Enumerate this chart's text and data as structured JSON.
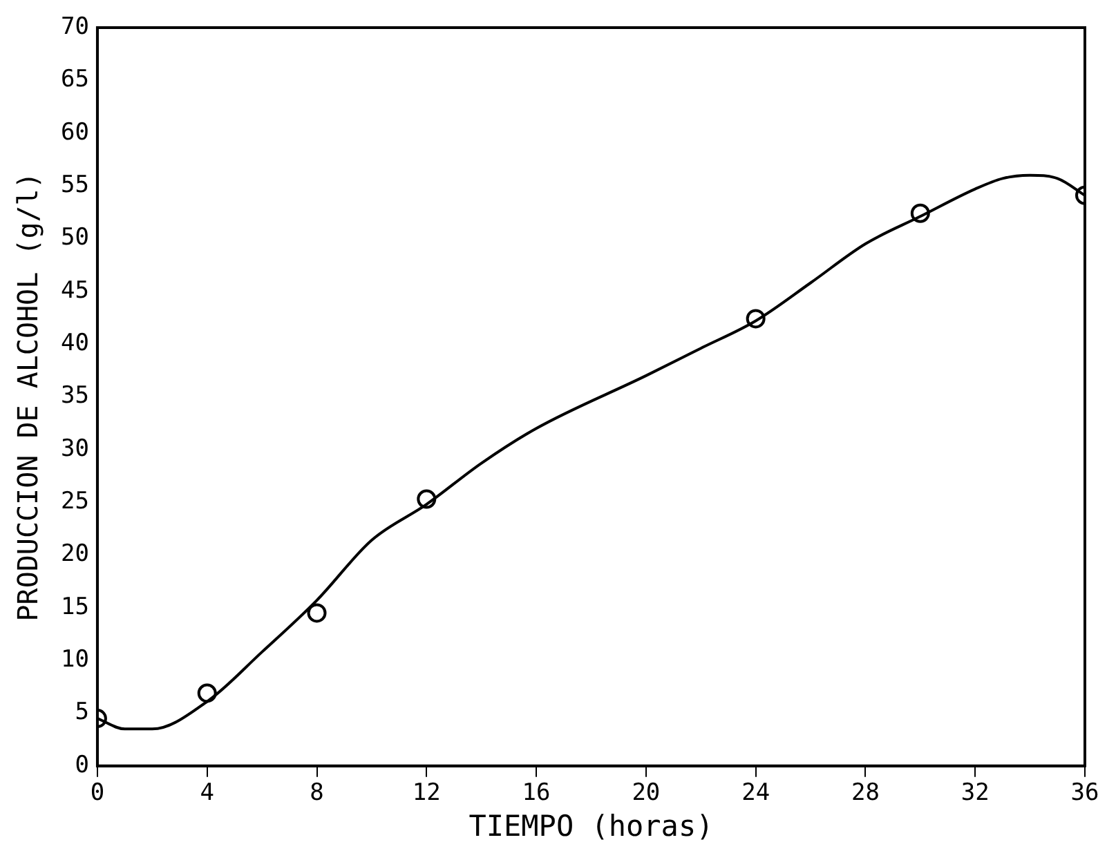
{
  "chart_data": {
    "type": "scatter",
    "xlabel": "TIEMPO (horas)",
    "ylabel": "PRODUCCION DE ALCOHOL (g/l)",
    "xlim": [
      0,
      36
    ],
    "xticks": [
      0,
      4,
      8,
      12,
      16,
      20,
      24,
      28,
      32,
      36
    ],
    "ylim": [
      0,
      70
    ],
    "yticks": [
      0,
      5,
      10,
      15,
      20,
      25,
      30,
      35,
      40,
      45,
      50,
      55,
      60,
      65,
      70
    ],
    "grid": false,
    "legend": false,
    "marker": "circle",
    "series": [
      {
        "color": "#000000",
        "x": [
          0,
          4,
          8,
          12,
          24,
          30,
          36
        ],
        "values": [
          4.5,
          6.9,
          14.5,
          25.3,
          42.4,
          52.4,
          54.1
        ]
      },
      {
        "type": "line",
        "color": "#000000",
        "marker": "none",
        "x": [
          0,
          1,
          2,
          4,
          6,
          8,
          10,
          12,
          14,
          16,
          20,
          22,
          24,
          26,
          28,
          30,
          32,
          33,
          34,
          35,
          36
        ],
        "values": [
          4.5,
          3.5,
          3.5,
          6.1,
          10.8,
          15.7,
          21.4,
          24.8,
          28.7,
          32.0,
          37.0,
          39.6,
          42.2,
          45.8,
          49.5,
          52.1,
          54.7,
          55.7,
          56.0,
          55.7,
          54.1
        ]
      }
    ]
  }
}
